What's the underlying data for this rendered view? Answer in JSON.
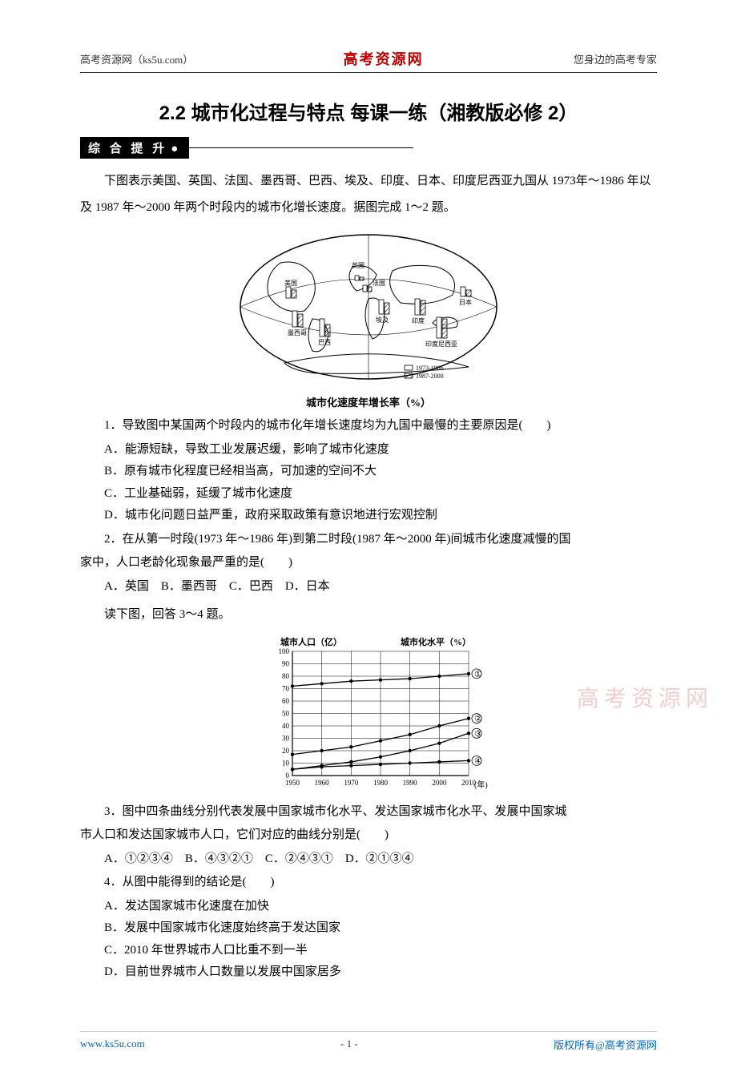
{
  "header": {
    "left": "高考资源网（ks5u.com）",
    "center": "高考资源网",
    "right": "您身边的高考专家"
  },
  "title": "2.2 城市化过程与特点 每课一练（湘教版必修 2）",
  "section_badge": "综 合 提 升",
  "intro": "下图表示美国、英国、法国、墨西哥、巴西、埃及、印度、日本、印度尼西亚九国从 1973年～1986 年以及 1987 年～2000 年两个时段内的城市化增长速度。据图完成 1～2 题。",
  "fig1": {
    "caption": "城市化速度年增长率（%）",
    "legend": [
      "1973-1986",
      "1987-2000"
    ],
    "labels": [
      "美国",
      "英国",
      "法国",
      "墨西哥",
      "巴西",
      "埃及",
      "印度",
      "日本",
      "印度尼西亚"
    ],
    "stroke": "#000000",
    "fill": "#ffffff"
  },
  "q1": {
    "stem": "1．导致图中某国两个时段内的城市化年增长速度均为九国中最慢的主要原因是(　　)",
    "opts": {
      "A": "A．能源短缺，导致工业发展迟缓，影响了城市化速度",
      "B": "B．原有城市化程度已经相当高，可加速的空间不大",
      "C": "C．工业基础弱，延缓了城市化速度",
      "D": "D．城市化问题日益严重，政府采取政策有意识地进行宏观控制"
    }
  },
  "q2": {
    "stem_a": "2．在从第一时段(1973 年～1986 年)到第二时段(1987 年～2000 年)间城市化速度减慢的国",
    "stem_b": "家中，人口老龄化现象最严重的是(　　)",
    "opts": "A．英国　B．墨西哥　C．巴西　D．日本"
  },
  "instr2": "读下图，回答 3～4 题。",
  "fig2": {
    "left_title": "城市人口（亿）",
    "right_title": "城市化水平（%）",
    "x_label": "(年)",
    "y_ticks": [
      0,
      10,
      20,
      30,
      40,
      50,
      60,
      70,
      80,
      90,
      100
    ],
    "x_ticks": [
      "1950",
      "1960",
      "1970",
      "1980",
      "1990",
      "2000",
      "2010"
    ],
    "series": {
      "1": [
        72,
        74,
        76,
        77,
        78,
        80,
        82
      ],
      "2": [
        17,
        20,
        23,
        28,
        33,
        40,
        46
      ],
      "3": [
        5,
        8,
        11,
        15,
        20,
        26,
        34
      ],
      "4": [
        5,
        7,
        8,
        9,
        10,
        11,
        12
      ]
    },
    "series_labels": {
      "1": "①",
      "2": "②",
      "3": "③",
      "4": "④"
    },
    "grid_color": "#000000",
    "line_color": "#000000",
    "bg": "#ffffff"
  },
  "q3": {
    "stem_a": "3．图中四条曲线分别代表发展中国家城市化水平、发达国家城市化水平、发展中国家城",
    "stem_b": "市人口和发达国家城市人口，它们对应的曲线分别是(　　)",
    "opts": "A．①②③④　B．④③②①　C．②④③①　D．②①③④"
  },
  "q4": {
    "stem": "4．从图中能得到的结论是(　　)",
    "opts": {
      "A": "A．发达国家城市化速度在加快",
      "B": "B．发展中国家城市化速度始终高于发达国家",
      "C": "C．2010 年世界城市人口比重不到一半",
      "D": "D．目前世界城市人口数量以发展中国家居多"
    }
  },
  "watermark": "高考资源网",
  "footer": {
    "url": "www.ks5u.com",
    "page": "- 1 -",
    "right": "版权所有@高考资源网"
  }
}
